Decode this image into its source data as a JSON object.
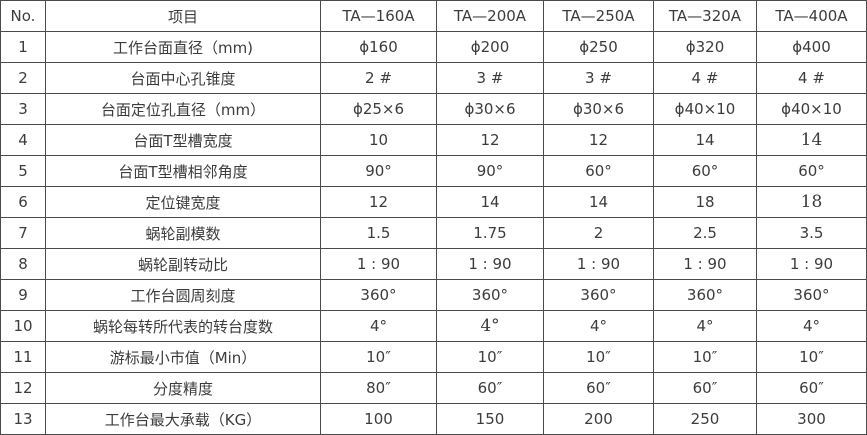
{
  "table": {
    "name": "rotary-table-specifications",
    "colors": {
      "text": "#3c3c3c",
      "border": "#4b4b4b",
      "background": "#ffffff"
    },
    "headers": [
      "No.",
      "项目",
      "TA—160A",
      "TA—200A",
      "TA—250A",
      "TA—320A",
      "TA—400A"
    ],
    "rows": [
      {
        "no": "1",
        "label": "工作台面直径（mm)",
        "values": [
          "ϕ160",
          "ϕ200",
          "ϕ250",
          "ϕ320",
          "ϕ400"
        ]
      },
      {
        "no": "2",
        "label": "台面中心孔锥度",
        "values": [
          "2 #",
          "3 #",
          "3 #",
          "4 #",
          "4 #"
        ]
      },
      {
        "no": "3",
        "label": "台面定位孔直径（mm）",
        "values": [
          "ϕ25×6",
          "ϕ30×6",
          "ϕ30×6",
          "ϕ40×10",
          "ϕ40×10"
        ]
      },
      {
        "no": "4",
        "label": "台面T型槽宽度",
        "values": [
          "10",
          "12",
          "12",
          "14",
          "14"
        ],
        "serif_cells": [
          4
        ]
      },
      {
        "no": "5",
        "label": "台面T型槽相邻角度",
        "values": [
          "90°",
          "90°",
          "60°",
          "60°",
          "60°"
        ]
      },
      {
        "no": "6",
        "label": "定位键宽度",
        "values": [
          "12",
          "14",
          "14",
          "18",
          "18"
        ],
        "serif_cells": [
          4
        ]
      },
      {
        "no": "7",
        "label": "蜗轮副模数",
        "values": [
          "1.5",
          "1.75",
          "2",
          "2.5",
          "3.5"
        ]
      },
      {
        "no": "8",
        "label": "蜗轮副转动比",
        "values": [
          "1 : 90",
          "1 : 90",
          "1 : 90",
          "1 : 90",
          "1 : 90"
        ]
      },
      {
        "no": "9",
        "label": "工作台圆周刻度",
        "values": [
          "360°",
          "360°",
          "360°",
          "360°",
          "360°"
        ]
      },
      {
        "no": "10",
        "label": "蜗轮每转所代表的转台度数",
        "values": [
          "4°",
          "4°",
          "4°",
          "4°",
          "4°"
        ],
        "serif_cells": [
          1
        ]
      },
      {
        "no": "11",
        "label": "游标最小市值（Min）",
        "values": [
          "10″",
          "10″",
          "10″",
          "10″",
          "10″"
        ]
      },
      {
        "no": "12",
        "label": "分度精度",
        "values": [
          "80″",
          "60″",
          "60″",
          "60″",
          "60″"
        ]
      },
      {
        "no": "13",
        "label": "工作台最大承载（KG）",
        "values": [
          "100",
          "150",
          "200",
          "250",
          "300"
        ]
      }
    ]
  }
}
